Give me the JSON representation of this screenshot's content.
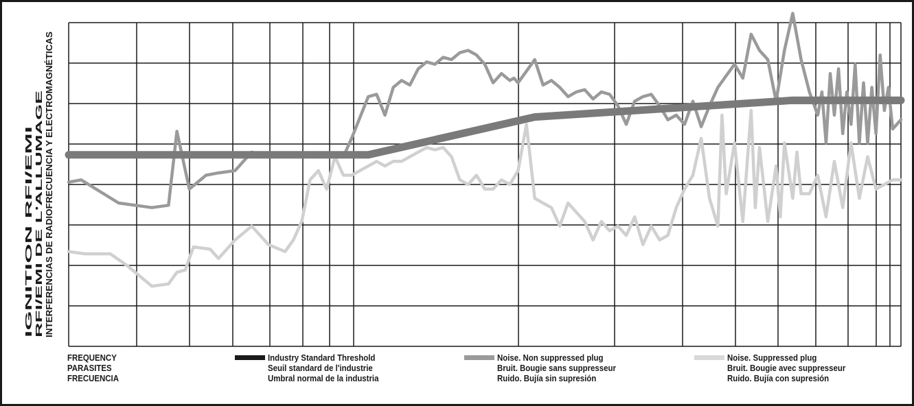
{
  "chart_data": {
    "type": "line",
    "title": "",
    "ylabel": [
      "IGNITION RFI/EMI",
      "RFI/EMI DE L'ALLUMAGE",
      "INTERFERENCIAS DE RADIOFRECUENCIA Y ELECTROMAGNÉTICAS"
    ],
    "xlabel": [
      "FREQUENCY",
      "PARASITES",
      "FRECUENCIA"
    ],
    "x_scale": "log",
    "ylim": [
      0,
      7
    ],
    "grid": true,
    "colors": {
      "threshold": "#7a7a7a",
      "non_suppressed": "#9a9a9a",
      "suppressed": "#d0d0d0",
      "grid": "#1a1a1a"
    },
    "series": [
      {
        "key": "threshold",
        "name": [
          "Industry Standard Threshold",
          "Seuil standard de l'industrie",
          "Umbral normal de la industria"
        ],
        "x": [
          0.0,
          0.36,
          0.56,
          0.87,
          1.0
        ],
        "y": [
          4.14,
          4.14,
          4.96,
          5.32,
          5.32
        ]
      },
      {
        "key": "non_suppressed",
        "name": [
          "Noise. Non suppressed plug",
          "Bruit. Bougie sans suppresseur",
          "Ruido. Bujía sin supresión"
        ],
        "x": [
          0.0,
          0.015,
          0.06,
          0.1,
          0.12,
          0.13,
          0.145,
          0.155,
          0.165,
          0.18,
          0.2,
          0.22,
          0.23,
          0.24,
          0.27,
          0.3,
          0.33,
          0.34,
          0.36,
          0.37,
          0.38,
          0.39,
          0.4,
          0.41,
          0.42,
          0.43,
          0.44,
          0.45,
          0.46,
          0.47,
          0.48,
          0.49,
          0.5,
          0.51,
          0.52,
          0.53,
          0.535,
          0.54,
          0.55,
          0.56,
          0.57,
          0.58,
          0.59,
          0.6,
          0.61,
          0.62,
          0.63,
          0.64,
          0.65,
          0.66,
          0.67,
          0.68,
          0.69,
          0.7,
          0.71,
          0.72,
          0.73,
          0.74,
          0.75,
          0.76,
          0.77,
          0.775,
          0.78,
          0.79,
          0.8,
          0.81,
          0.82,
          0.83,
          0.84,
          0.85,
          0.86,
          0.87,
          0.88,
          0.89,
          0.9,
          0.905,
          0.91,
          0.915,
          0.92,
          0.925,
          0.93,
          0.935,
          0.94,
          0.945,
          0.95,
          0.955,
          0.96,
          0.965,
          0.97,
          0.975,
          0.98,
          0.985,
          0.99,
          1.0
        ],
        "y": [
          3.55,
          3.6,
          3.1,
          3.0,
          3.05,
          4.65,
          3.4,
          3.55,
          3.7,
          3.75,
          3.8,
          4.2,
          4.15,
          4.1,
          4.1,
          4.15,
          4.1,
          4.5,
          5.4,
          5.45,
          5.0,
          5.6,
          5.75,
          5.65,
          6.0,
          6.15,
          6.1,
          6.25,
          6.2,
          6.35,
          6.4,
          6.3,
          6.1,
          5.7,
          5.9,
          5.75,
          5.8,
          5.7,
          5.95,
          6.2,
          5.65,
          5.75,
          5.6,
          5.4,
          5.5,
          5.55,
          5.35,
          5.5,
          5.45,
          5.2,
          4.8,
          5.3,
          5.4,
          5.45,
          5.2,
          4.9,
          5.0,
          4.8,
          5.3,
          4.75,
          5.2,
          5.4,
          5.6,
          5.85,
          6.1,
          5.8,
          6.75,
          6.4,
          6.2,
          5.3,
          6.4,
          7.2,
          6.2,
          5.5,
          5.0,
          5.5,
          4.4,
          5.9,
          5.0,
          6.0,
          4.6,
          5.5,
          4.8,
          6.1,
          4.4,
          5.7,
          4.4,
          5.6,
          4.6,
          6.3,
          5.1,
          5.6,
          4.7,
          4.9
        ]
      },
      {
        "key": "suppressed",
        "name": [
          "Noise. Suppressed plug",
          "Bruit. Bougie avec suppresseur",
          "Ruido. Bujía con supresión"
        ],
        "x": [
          0.0,
          0.02,
          0.05,
          0.07,
          0.08,
          0.1,
          0.12,
          0.13,
          0.14,
          0.15,
          0.17,
          0.18,
          0.2,
          0.22,
          0.24,
          0.26,
          0.27,
          0.28,
          0.29,
          0.3,
          0.31,
          0.32,
          0.33,
          0.34,
          0.35,
          0.37,
          0.38,
          0.39,
          0.4,
          0.41,
          0.42,
          0.43,
          0.44,
          0.45,
          0.46,
          0.47,
          0.48,
          0.49,
          0.5,
          0.51,
          0.52,
          0.53,
          0.54,
          0.55,
          0.56,
          0.57,
          0.58,
          0.59,
          0.6,
          0.61,
          0.62,
          0.63,
          0.64,
          0.65,
          0.66,
          0.67,
          0.68,
          0.69,
          0.7,
          0.71,
          0.72,
          0.73,
          0.74,
          0.75,
          0.76,
          0.77,
          0.78,
          0.785,
          0.79,
          0.8,
          0.81,
          0.82,
          0.825,
          0.83,
          0.84,
          0.85,
          0.855,
          0.86,
          0.87,
          0.875,
          0.88,
          0.89,
          0.9,
          0.91,
          0.92,
          0.93,
          0.94,
          0.95,
          0.96,
          0.97,
          0.98,
          0.99,
          1.0
        ],
        "y": [
          2.05,
          2.0,
          2.0,
          1.75,
          1.6,
          1.3,
          1.35,
          1.6,
          1.65,
          2.15,
          2.1,
          1.9,
          2.3,
          2.6,
          2.2,
          2.05,
          2.3,
          2.7,
          3.6,
          3.8,
          3.4,
          4.1,
          3.7,
          3.7,
          3.8,
          4.0,
          3.9,
          4.0,
          4.0,
          4.1,
          4.2,
          4.3,
          4.25,
          4.3,
          4.1,
          3.6,
          3.5,
          3.7,
          3.4,
          3.4,
          3.6,
          3.5,
          3.8,
          4.8,
          3.2,
          3.1,
          3.0,
          2.6,
          3.1,
          2.9,
          2.7,
          2.3,
          2.7,
          2.5,
          2.6,
          2.4,
          2.8,
          2.2,
          2.6,
          2.3,
          2.4,
          3.0,
          3.4,
          3.7,
          4.5,
          3.2,
          2.6,
          5.0,
          3.3,
          4.4,
          2.7,
          5.1,
          3.0,
          4.3,
          2.7,
          3.9,
          2.8,
          4.4,
          3.2,
          4.2,
          3.3,
          3.3,
          3.7,
          2.8,
          4.0,
          3.0,
          4.4,
          3.2,
          4.1,
          3.4,
          3.5,
          3.6,
          3.6
        ]
      }
    ]
  }
}
